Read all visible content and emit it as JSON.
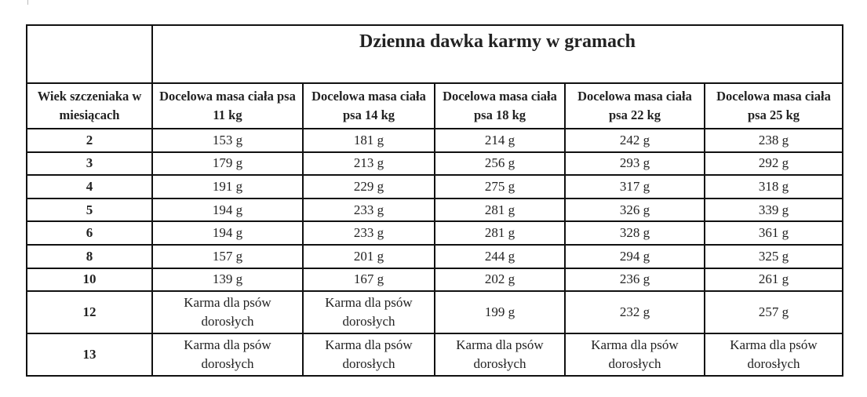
{
  "table": {
    "title": "Dzienna dawka karmy w gramach",
    "columns": [
      "Wiek szczeniaka w miesiącach",
      "Docelowa masa ciała psa 11 kg",
      "Docelowa masa ciała psa 14 kg",
      "Docelowa masa ciała psa 18 kg",
      "Docelowa masa ciała psa 22 kg",
      "Docelowa masa ciała psa 25 kg"
    ],
    "rows": [
      [
        "2",
        "153 g",
        "181 g",
        "214 g",
        "242 g",
        "238 g"
      ],
      [
        "3",
        "179 g",
        "213 g",
        "256 g",
        "293 g",
        "292 g"
      ],
      [
        "4",
        "191 g",
        "229 g",
        "275 g",
        "317 g",
        "318 g"
      ],
      [
        "5",
        "194 g",
        "233 g",
        "281 g",
        "326 g",
        "339 g"
      ],
      [
        "6",
        "194 g",
        "233 g",
        "281 g",
        "328 g",
        "361 g"
      ],
      [
        "8",
        "157 g",
        "201 g",
        "244 g",
        "294 g",
        "325 g"
      ],
      [
        "10",
        "139 g",
        "167 g",
        "202 g",
        "236 g",
        "261 g"
      ],
      [
        "12",
        "Karma dla psów dorosłych",
        "Karma dla psów dorosłych",
        "199 g",
        "232 g",
        "257 g"
      ],
      [
        "13",
        "Karma dla psów dorosłych",
        "Karma dla psów dorosłych",
        "Karma dla psów dorosłych",
        "Karma dla psów dorosłych",
        "Karma dla psów dorosłych"
      ]
    ]
  }
}
